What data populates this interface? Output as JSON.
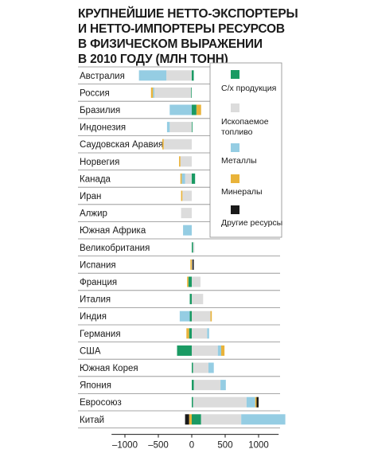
{
  "chart_data": {
    "type": "bar",
    "title_lines": [
      "КРУПНЕЙШИЕ НЕТТО-ЭКСПОРТЕРЫ",
      "И НЕТТО-ИМПОРТЕРЫ РЕСУРСОВ",
      "В ФИЗИЧЕСКОМ ВЫРАЖЕНИИ",
      "В 2010 ГОДУ (МЛН ТОНН)"
    ],
    "xlim": [
      -1200,
      1300
    ],
    "x_ticks": [
      -1000,
      -500,
      0,
      500,
      1000
    ],
    "x_tick_labels": [
      "–1000",
      "–500",
      "0",
      "500",
      "1000"
    ],
    "categories": [
      "Австралия",
      "Россия",
      "Бразилия",
      "Индонезия",
      "Саудовская Аравия",
      "Норвегия",
      "Канада",
      "Иран",
      "Алжир",
      "Южная Африка",
      "Великобритания",
      "Испания",
      "Франция",
      "Италия",
      "Индия",
      "Германия",
      "США",
      "Южная Корея",
      "Япония",
      "Евросоюз",
      "Китай"
    ],
    "series": [
      {
        "name": "С/х продукция",
        "color": "#1a9a63",
        "values": [
          30,
          -10,
          70,
          10,
          0,
          0,
          50,
          0,
          0,
          0,
          20,
          0,
          -50,
          -30,
          -30,
          -40,
          -220,
          20,
          30,
          20,
          140
        ]
      },
      {
        "name": "Ископаемое топливо",
        "color": "#dcdcdc",
        "values": [
          -380,
          -550,
          0,
          -330,
          -420,
          -170,
          -100,
          -140,
          -160,
          0,
          20,
          10,
          130,
          170,
          280,
          230,
          390,
          230,
          400,
          800,
          600
        ]
      },
      {
        "name": "Металлы",
        "color": "#95cde3",
        "values": [
          -410,
          -20,
          -330,
          -40,
          0,
          0,
          -50,
          0,
          0,
          -130,
          0,
          0,
          0,
          0,
          -150,
          30,
          50,
          80,
          80,
          130,
          660
        ]
      },
      {
        "name": "Минералы",
        "color": "#e9b33a",
        "values": [
          0,
          -30,
          70,
          0,
          -20,
          -20,
          -20,
          -20,
          0,
          0,
          0,
          -20,
          -20,
          0,
          20,
          -40,
          50,
          0,
          0,
          20,
          -40
        ]
      },
      {
        "name": "Другие ресурсы",
        "color": "#1a1a1a",
        "values": [
          0,
          0,
          0,
          0,
          0,
          0,
          0,
          0,
          0,
          0,
          0,
          20,
          0,
          0,
          0,
          0,
          0,
          0,
          0,
          30,
          -60
        ]
      }
    ],
    "legend": {
      "placement": "top-right",
      "labels": [
        "С/х продукция",
        "Ископаемое топливо",
        "Металлы",
        "Минералы",
        "Другие ресурсы"
      ]
    },
    "grid": false
  }
}
